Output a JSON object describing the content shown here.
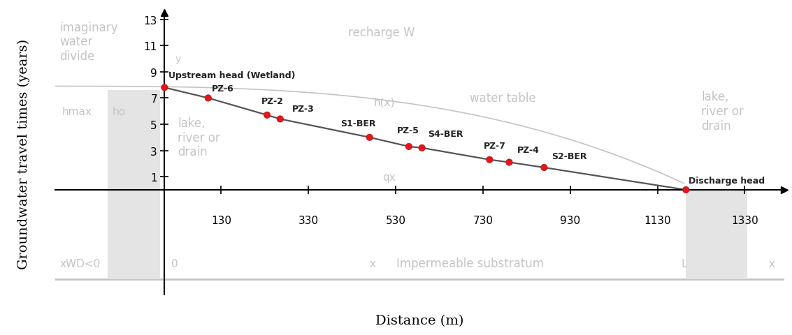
{
  "chart_data": {
    "type": "line",
    "x_label": "Distance (m)",
    "y_label": "Groundwater travel times (years)",
    "x": [
      0,
      100,
      235,
      265,
      470,
      560,
      590,
      745,
      790,
      870,
      1195
    ],
    "series": [
      {
        "values": [
          7.8,
          7.0,
          5.7,
          5.4,
          4.0,
          3.3,
          3.2,
          2.3,
          2.1,
          1.7,
          0.0
        ],
        "color": "#555555",
        "marker": "o",
        "colors": [
          "#e8141b",
          "#e8141b",
          "#e8141b",
          "#e8141b",
          "#e8141b",
          "#e8141b",
          "#e8141b",
          "#e8141b",
          "#e8141b",
          "#e8141b",
          "#e8141b"
        ],
        "point_labels": [
          "Upstream head (Wetland)",
          "PZ-6",
          "PZ-2",
          "PZ-3",
          "S1-BER",
          "PZ-5",
          "S4-BER",
          "PZ-7",
          "PZ-4",
          "S2-BER",
          "Discharge head"
        ]
      }
    ],
    "xlim": [
      -250,
      1420
    ],
    "ylim": [
      -8,
      13.5
    ],
    "xticks": [
      130,
      330,
      530,
      730,
      930,
      1130,
      1330
    ],
    "yticks": [
      1,
      3,
      5,
      7,
      9,
      11,
      13
    ],
    "background_texts": [
      "imaginary\nwater\ndivide",
      "recharge W",
      "water table",
      "lake,\nriver or\ndrain",
      "lake,\nriver or\ndrain",
      "Impermeable substratum",
      "h(x)",
      "qx",
      "hmax",
      "ho",
      "xWD<0",
      "0",
      "x",
      "L",
      "x",
      "y"
    ]
  }
}
